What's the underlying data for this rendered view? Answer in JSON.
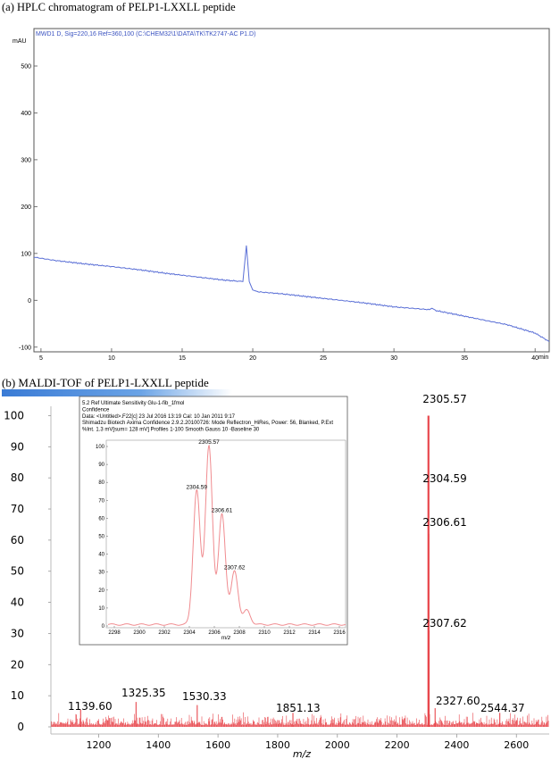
{
  "panel_a": {
    "caption": "(a) HPLC chromatogram of PELP1-LXXLL peptide",
    "trace_label": "MWD1 D, Sig=220,16 Ref=360,100 (C:\\CHEM32\\1\\DATA\\TK\\TK2747-AC P1.D)",
    "colors": {
      "trace": "#5a6fd6",
      "frame": "#555555"
    }
  },
  "panel_b": {
    "caption": "(b)  MALDI-TOF of PELP1-LXXLL peptide",
    "colors": {
      "spectrum": "#e8474d",
      "inset_trace": "#f08c90",
      "gradient_bar": "#3a7bd5"
    }
  },
  "inset": {
    "header_lines": [
      "5.2 Ref Ultimate Sensitivity Glu-1-fib_1fmol",
      "Confidence",
      "Data: <Untitled>.F22[c] 23 Jul 2016 13:19 Cal: 10 Jan 2011 9:17",
      "Shimadzu Biotech Axima Confidence 2.9.2.20100726: Mode Reflectron_HiRes, Power: 56, Blanked, P.Ext",
      "%Int.      1.3 mV[sum= 128 mV]  Profiles 1-100 Smooth Gauss 10 -Baseline 30"
    ]
  },
  "chart_data": [
    {
      "type": "line",
      "title": "",
      "xlabel": "min",
      "ylabel": "mAU",
      "xlim": [
        4.5,
        41
      ],
      "ylim": [
        -110,
        580
      ],
      "x_ticks": [
        5,
        10,
        15,
        20,
        25,
        30,
        35,
        40
      ],
      "y_ticks": [
        -100,
        0,
        100,
        200,
        300,
        400,
        500
      ],
      "grid": false,
      "series": [
        {
          "x": [
            4.5,
            6,
            8,
            10,
            12,
            14,
            16,
            18,
            19.3,
            19.55,
            19.75,
            20.0,
            20.4,
            22,
            25,
            28,
            30,
            32.5,
            32.7,
            33,
            35,
            38,
            40,
            41
          ],
          "y": [
            92,
            85,
            78,
            72,
            65,
            57,
            50,
            43,
            40,
            117,
            40,
            22,
            18,
            14,
            4,
            -6,
            -14,
            -20,
            -17,
            -22,
            -34,
            -52,
            -70,
            -88
          ]
        }
      ]
    },
    {
      "type": "bar",
      "title": "",
      "xlabel": "m/z",
      "ylabel": "",
      "xlim": [
        1040,
        2710
      ],
      "ylim": [
        -2,
        103
      ],
      "x_ticks": [
        1200,
        1400,
        1600,
        1800,
        2000,
        2200,
        2400,
        2600
      ],
      "y_ticks": [
        0,
        10,
        20,
        30,
        40,
        50,
        60,
        70,
        80,
        90,
        100
      ],
      "grid": false,
      "peaks": [
        {
          "mz": 1139.6,
          "intensity": 5.5,
          "label": "1139.60"
        },
        {
          "mz": 1325.35,
          "intensity": 8.0,
          "label": "1325.35"
        },
        {
          "mz": 1530.33,
          "intensity": 7.0,
          "label": "1530.33"
        },
        {
          "mz": 1851.13,
          "intensity": 4.5,
          "label": "1851.13"
        },
        {
          "mz": 2304.59,
          "intensity": 75,
          "label": "2304.59"
        },
        {
          "mz": 2305.57,
          "intensity": 100,
          "label": "2305.57"
        },
        {
          "mz": 2306.61,
          "intensity": 62,
          "label": "2306.61"
        },
        {
          "mz": 2307.62,
          "intensity": 31,
          "label": "2307.62"
        },
        {
          "mz": 2327.6,
          "intensity": 6.0,
          "label": "2327.60"
        },
        {
          "mz": 2544.37,
          "intensity": 4.5,
          "label": "2544.37"
        }
      ]
    },
    {
      "type": "line",
      "title": "",
      "xlabel": "m/z",
      "ylabel": "",
      "xlim": [
        2297.5,
        2316.5
      ],
      "ylim": [
        0,
        102
      ],
      "x_ticks": [
        2298,
        2300,
        2302,
        2304,
        2306,
        2308,
        2310,
        2312,
        2314,
        2316
      ],
      "y_ticks": [
        0,
        10,
        20,
        30,
        40,
        50,
        60,
        70,
        80,
        90,
        100
      ],
      "grid": false,
      "peaks": [
        {
          "mz": 2304.59,
          "intensity": 75,
          "label": "2304.59"
        },
        {
          "mz": 2305.57,
          "intensity": 100,
          "label": "2305.57"
        },
        {
          "mz": 2306.61,
          "intensity": 62,
          "label": "2306.61"
        },
        {
          "mz": 2307.62,
          "intensity": 30,
          "label": "2307.62"
        },
        {
          "mz": 2308.6,
          "intensity": 8,
          "label": ""
        }
      ]
    }
  ]
}
